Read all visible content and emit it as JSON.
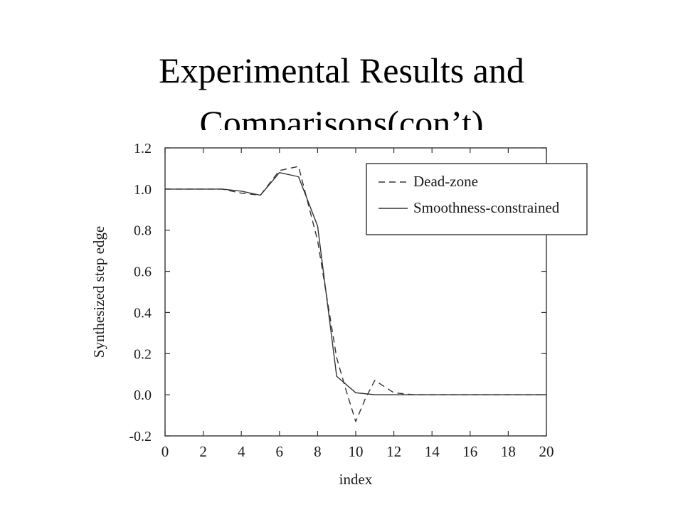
{
  "slide": {
    "title_line1": "Experimental Results and",
    "title_line2": "Comparisons(con’t)"
  },
  "chart_data": {
    "type": "line",
    "title": "",
    "xlabel": "index",
    "ylabel": "Synthesized step edge",
    "xlim": [
      0,
      20
    ],
    "ylim": [
      -0.2,
      1.2
    ],
    "xticks": [
      0,
      2,
      4,
      6,
      8,
      10,
      12,
      14,
      16,
      18,
      20
    ],
    "yticks": [
      -0.2,
      0.0,
      0.2,
      0.4,
      0.6,
      0.8,
      1.0,
      1.2
    ],
    "xtick_labels": [
      "0",
      "2",
      "4",
      "6",
      "8",
      "10",
      "12",
      "14",
      "16",
      "18",
      "20"
    ],
    "ytick_labels": [
      "-0.2",
      "0.0",
      "0.2",
      "0.4",
      "0.6",
      "0.8",
      "1.0",
      "1.2"
    ],
    "grid": false,
    "legend_position": "top-right",
    "series": [
      {
        "name": "Dead-zone",
        "style": "dashed",
        "color": "#333333",
        "x": [
          0,
          1,
          2,
          3,
          4,
          5,
          6,
          6.5,
          7,
          8,
          9,
          9.5,
          10,
          10.5,
          11,
          12,
          13,
          14,
          15,
          16,
          17,
          18,
          19,
          20
        ],
        "y": [
          1.0,
          1.0,
          1.0,
          1.0,
          0.98,
          0.97,
          1.09,
          1.1,
          1.11,
          0.75,
          0.18,
          0.02,
          -0.13,
          -0.02,
          0.07,
          0.01,
          0.0,
          0.0,
          0.0,
          0.0,
          0.0,
          0.0,
          0.0,
          0.0
        ]
      },
      {
        "name": "Smoothness-constrained",
        "style": "solid",
        "color": "#333333",
        "x": [
          0,
          1,
          2,
          3,
          4,
          5,
          6,
          7,
          8,
          9,
          10,
          11,
          12,
          13,
          14,
          15,
          16,
          17,
          18,
          19,
          20
        ],
        "y": [
          1.0,
          1.0,
          1.0,
          1.0,
          0.99,
          0.97,
          1.08,
          1.06,
          0.82,
          0.09,
          0.01,
          0.0,
          0.0,
          0.0,
          0.0,
          0.0,
          0.0,
          0.0,
          0.0,
          0.0,
          0.0
        ]
      }
    ]
  }
}
